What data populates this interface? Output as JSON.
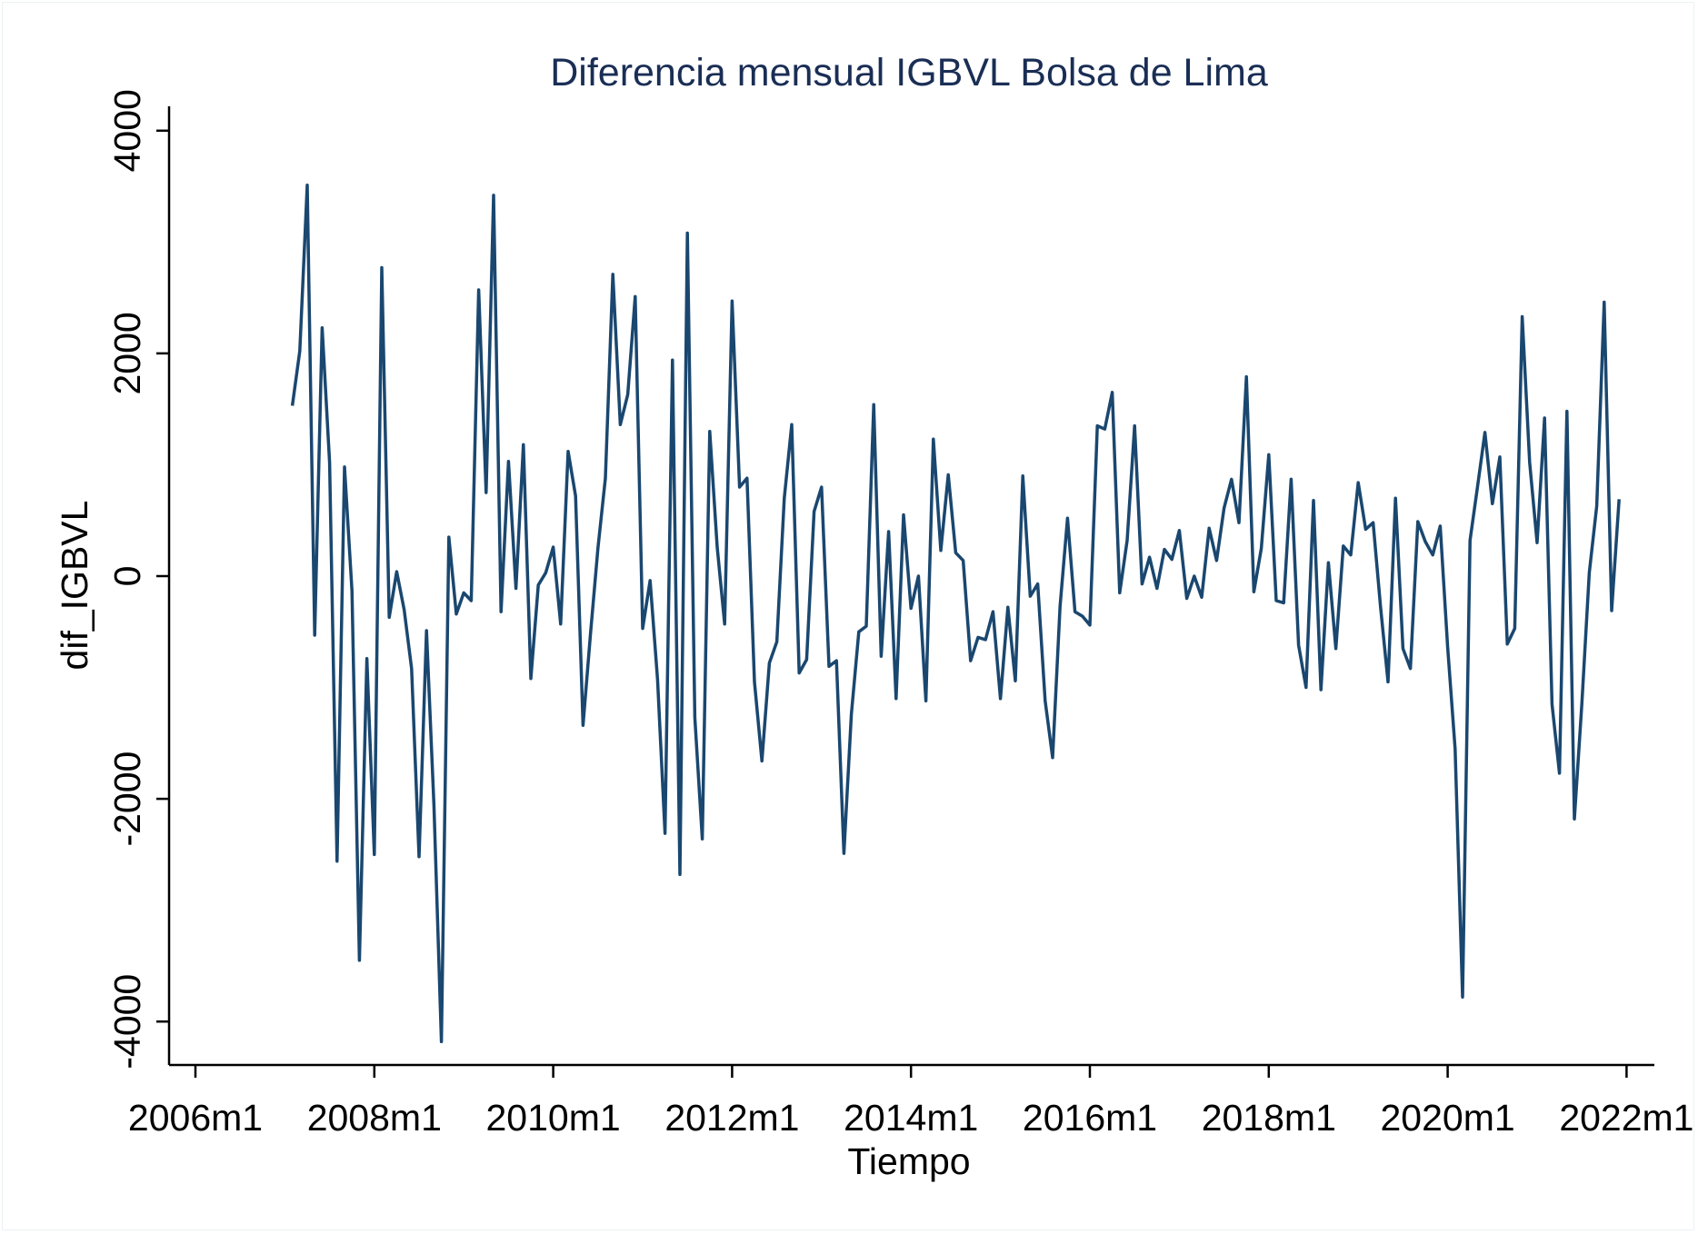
{
  "chart_data": {
    "type": "line",
    "title": "Diferencia mensual IGBVL Bolsa de Lima",
    "xlabel": "Tiempo",
    "ylabel": "dif_IGBVL",
    "x_ticks": [
      "2006m1",
      "2008m1",
      "2010m1",
      "2012m1",
      "2014m1",
      "2016m1",
      "2018m1",
      "2020m1",
      "2022m1"
    ],
    "y_ticks": [
      4000,
      2000,
      0,
      -2000,
      -4000
    ],
    "y_tick_labels": [
      "4000",
      "2000",
      "0",
      "-2000",
      "-4000"
    ],
    "xlim": [
      "2006m1",
      "2022m1"
    ],
    "ylim": [
      -4000,
      4000
    ],
    "grid": false,
    "legend": "none",
    "series": [
      {
        "color": "#1a476f",
        "x_start": "2007m2",
        "frequency": "monthly",
        "values": [
          1530,
          2020,
          3510,
          -530,
          2230,
          1020,
          -2560,
          980,
          -130,
          -3450,
          -740,
          -2500,
          2770,
          -370,
          40,
          -300,
          -830,
          -2520,
          -490,
          -2060,
          -4180,
          350,
          -340,
          -150,
          -220,
          2570,
          750,
          3420,
          -320,
          1030,
          -110,
          1180,
          -920,
          -80,
          30,
          260,
          -430,
          1120,
          720,
          -1340,
          -520,
          250,
          880,
          2710,
          1360,
          1630,
          2510,
          -470,
          -40,
          -930,
          -2310,
          1940,
          -2680,
          3080,
          -1270,
          -2360,
          1300,
          260,
          -430,
          2470,
          800,
          880,
          -950,
          -1660,
          -780,
          -590,
          700,
          1360,
          -870,
          -750,
          580,
          800,
          -810,
          -760,
          -2490,
          -1240,
          -500,
          -450,
          1540,
          -720,
          400,
          -1100,
          550,
          -290,
          0,
          -1120,
          1230,
          230,
          910,
          210,
          140,
          -760,
          -550,
          -570,
          -320,
          -1100,
          -280,
          -940,
          900,
          -180,
          -70,
          -1120,
          -1630,
          -270,
          520,
          -320,
          -360,
          -440,
          1350,
          1320,
          1650,
          -150,
          320,
          1350,
          -70,
          170,
          -110,
          240,
          150,
          410,
          -200,
          0,
          -190,
          430,
          140,
          610,
          870,
          480,
          1790,
          -140,
          250,
          1090,
          -220,
          -240,
          870,
          -620,
          -1000,
          680,
          -1020,
          120,
          -650,
          270,
          190,
          840,
          420,
          480,
          -280,
          -950,
          700,
          -650,
          -830,
          490,
          310,
          190,
          450,
          -640,
          -1550,
          -3780,
          320,
          800,
          1290,
          650,
          1070,
          -610,
          -470,
          2330,
          1020,
          300,
          1420,
          -1150,
          -1770,
          1480,
          -2180,
          -1150,
          30,
          630,
          2460,
          -310,
          690
        ]
      }
    ]
  }
}
